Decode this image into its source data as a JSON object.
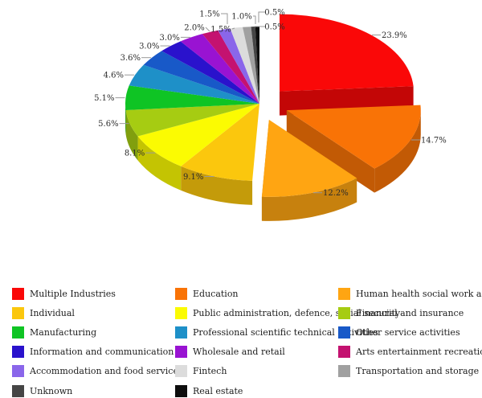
{
  "chart_data": {
    "type": "pie",
    "style": "3d-exploded",
    "title": "",
    "legend_position": "bottom",
    "slices": [
      {
        "label": "Multiple Industries",
        "value": 23.9,
        "pct": "23.9%",
        "color": "#FA0808",
        "exploded": true
      },
      {
        "label": "Education",
        "value": 14.7,
        "pct": "14.7%",
        "color": "#F97306",
        "exploded": true
      },
      {
        "label": "Human health social work activities",
        "value": 12.2,
        "pct": "12.2%",
        "color": "#FFA512",
        "exploded": true
      },
      {
        "label": "Individual",
        "value": 9.1,
        "pct": "9.1%",
        "color": "#FBC70D",
        "exploded": false
      },
      {
        "label": "Public administration, defence, social security",
        "value": 8.1,
        "pct": "8.1%",
        "color": "#FBFB02",
        "exploded": false
      },
      {
        "label": "Financial and insurance",
        "value": 5.6,
        "pct": "5.6%",
        "color": "#A6CC12",
        "exploded": false
      },
      {
        "label": "Manufacturing",
        "value": 5.1,
        "pct": "5.1%",
        "color": "#0FC424",
        "exploded": false
      },
      {
        "label": "Professional scientific technical activities",
        "value": 4.6,
        "pct": "4.6%",
        "color": "#1E90C8",
        "exploded": false
      },
      {
        "label": "Other service activities",
        "value": 3.6,
        "pct": "3.6%",
        "color": "#1859C8",
        "exploded": false
      },
      {
        "label": "Information and communication",
        "value": 3.0,
        "pct": "3.0%",
        "color": "#2A12CC",
        "exploded": false
      },
      {
        "label": "Wholesale and retail",
        "value": 3.0,
        "pct": "3.0%",
        "color": "#9913D2",
        "exploded": false
      },
      {
        "label": "Arts entertainment recreation",
        "value": 2.0,
        "pct": "2.0%",
        "color": "#C41270",
        "exploded": false
      },
      {
        "label": "Accommodation and food service",
        "value": 1.5,
        "pct": "1.5%",
        "color": "#8A66EA",
        "exploded": false
      },
      {
        "label": "Fintech",
        "value": 1.5,
        "pct": "1.5%",
        "color": "#DCDCDC",
        "exploded": false
      },
      {
        "label": "Transportation and storage",
        "value": 1.0,
        "pct": "1.0%",
        "color": "#A0A0A0",
        "exploded": false
      },
      {
        "label": "Unknown",
        "value": 0.5,
        "pct": "0.5%",
        "color": "#454545",
        "exploded": false
      },
      {
        "label": "Real estate",
        "value": 0.5,
        "pct": "0.5%",
        "color": "#0D0D0D",
        "exploded": false
      }
    ],
    "legend_columns": [
      [
        "Multiple Industries",
        "Individual",
        "Manufacturing",
        "Information and communication",
        "Accommodation and food service",
        "Unknown"
      ],
      [
        "Education",
        "Public administration, defence, social security",
        "Professional scientific technical activities",
        "Wholesale and retail",
        "Fintech",
        "Real estate"
      ],
      [
        "Human health social work activities",
        "Financial and insurance",
        "Other service activities",
        "Arts entertainment recreation",
        "Transportation and storage"
      ]
    ]
  }
}
